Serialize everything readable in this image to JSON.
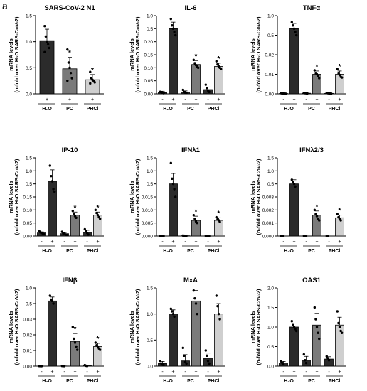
{
  "figure": {
    "panel_letter": "a"
  },
  "colors": {
    "H2O": "#2b2b2b",
    "PC": "#7a7a7a",
    "PHCl": "#cfcfcf",
    "untreated": "#2b2b2b"
  },
  "ylabel_line1": "mRNA levels",
  "ylabel_line2": "(n-fold over H₂O SARS-CoV-2)",
  "chart_data": [
    {
      "type": "bar",
      "title": "SARS-CoV-2 N1",
      "mode": "single",
      "groups": [
        "H₂O",
        "PC",
        "PHCl"
      ],
      "xticks": [
        [
          "+"
        ],
        [
          "+"
        ],
        [
          "+"
        ]
      ],
      "ylim": [
        0,
        1.5
      ],
      "yticks": [
        "0.0",
        "0.5",
        "1.0",
        "1.5"
      ],
      "bars": [
        {
          "group": 0,
          "fill": "H2O",
          "value": 1.02,
          "err": 0.22,
          "star": false,
          "dots": [
            1.3,
            1.1,
            1.0,
            0.95,
            0.88,
            0.8
          ]
        },
        {
          "group": 1,
          "fill": "PC",
          "value": 0.48,
          "err": 0.22,
          "star": true,
          "dots": [
            0.85,
            0.6,
            0.5,
            0.4,
            0.3,
            0.25
          ]
        },
        {
          "group": 2,
          "fill": "PHCl",
          "value": 0.27,
          "err": 0.1,
          "star": true,
          "dots": [
            0.42,
            0.3,
            0.27,
            0.25,
            0.22,
            0.2
          ]
        }
      ]
    },
    {
      "type": "bar",
      "title": "IL-6",
      "mode": "paired",
      "groups": [
        "H₂O",
        "PC",
        "PHCl"
      ],
      "xticks": [
        [
          "-",
          "+"
        ],
        [
          "-",
          "+"
        ],
        [
          "-",
          "+"
        ]
      ],
      "ylim": [
        0,
        1.2
      ],
      "yticks": [
        "0.00",
        "0.05",
        "0.10",
        "0.15",
        "0.20",
        "0.5",
        "1.0"
      ],
      "bars": [
        {
          "group": 0,
          "fill": "untreated",
          "value": 0.02,
          "err": 0.02,
          "star": false,
          "dots": [
            0.03,
            0.025,
            0.015,
            0.01
          ]
        },
        {
          "group": 0,
          "fill": "H2O",
          "value": 1.0,
          "err": 0.1,
          "star": false,
          "dots": [
            1.15,
            1.05,
            1.0,
            0.95,
            0.9
          ]
        },
        {
          "group": 1,
          "fill": "untreated",
          "value": 0.025,
          "err": 0.02,
          "star": false,
          "dots": [
            0.06,
            0.03,
            0.02,
            0.015
          ]
        },
        {
          "group": 1,
          "fill": "PC",
          "value": 0.45,
          "err": 0.06,
          "star": true,
          "dots": [
            0.52,
            0.47,
            0.44,
            0.42,
            0.4
          ]
        },
        {
          "group": 2,
          "fill": "untreated",
          "value": 0.065,
          "err": 0.04,
          "star": false,
          "dots": [
            0.14,
            0.09,
            0.05,
            0.03
          ]
        },
        {
          "group": 2,
          "fill": "PHCl",
          "value": 0.42,
          "err": 0.05,
          "star": true,
          "dots": [
            0.5,
            0.45,
            0.42,
            0.4,
            0.38
          ]
        }
      ]
    },
    {
      "type": "bar",
      "title": "TNFα",
      "mode": "paired",
      "groups": [
        "H₂O",
        "PC",
        "PHCl"
      ],
      "xticks": [
        [
          "-",
          "+"
        ],
        [
          "-",
          "+"
        ],
        [
          "-",
          "+"
        ]
      ],
      "ylim": [
        0,
        1.2
      ],
      "yticks": [
        "0.00",
        "0.01",
        "0.02",
        "0.5",
        "1.0"
      ],
      "bars": [
        {
          "group": 0,
          "fill": "untreated",
          "value": 0.005,
          "err": 0.004,
          "star": false,
          "dots": [
            0.009,
            0.006,
            0.004,
            0.003,
            0.002
          ]
        },
        {
          "group": 0,
          "fill": "H2O",
          "value": 1.0,
          "err": 0.08,
          "star": false,
          "dots": [
            1.1,
            1.05,
            1.0,
            0.95,
            0.9
          ]
        },
        {
          "group": 1,
          "fill": "untreated",
          "value": 0.009,
          "err": 0.004,
          "star": false,
          "dots": [
            0.014,
            0.01,
            0.008,
            0.006
          ]
        },
        {
          "group": 1,
          "fill": "PC",
          "value": 0.3,
          "err": 0.05,
          "star": true,
          "dots": [
            0.36,
            0.32,
            0.3,
            0.27,
            0.24
          ]
        },
        {
          "group": 2,
          "fill": "untreated",
          "value": 0.007,
          "err": 0.005,
          "star": false,
          "dots": [
            0.014,
            0.01,
            0.007,
            0.004,
            0.003
          ]
        },
        {
          "group": 2,
          "fill": "PHCl",
          "value": 0.3,
          "err": 0.05,
          "star": true,
          "dots": [
            0.38,
            0.32,
            0.29,
            0.26,
            0.25
          ]
        }
      ]
    },
    {
      "type": "bar",
      "title": "IP-10",
      "mode": "paired",
      "groups": [
        "H₂O",
        "PC",
        "PHCl"
      ],
      "xticks": [
        [
          "-",
          "+"
        ],
        [
          "-",
          "+"
        ],
        [
          "-",
          "+"
        ]
      ],
      "ylim": [
        0,
        1.5
      ],
      "yticks": [
        "0.00",
        "0.05",
        "0.10",
        "0.15",
        "0.5",
        "1.0",
        "1.5"
      ],
      "bars": [
        {
          "group": 0,
          "fill": "untreated",
          "value": 0.06,
          "err": 0.02,
          "star": false,
          "dots": [
            0.09,
            0.07,
            0.06,
            0.05,
            0.04
          ]
        },
        {
          "group": 0,
          "fill": "H2O",
          "value": 1.05,
          "err": 0.22,
          "star": false,
          "dots": [
            1.35,
            1.15,
            1.05,
            0.9,
            0.85
          ]
        },
        {
          "group": 1,
          "fill": "untreated",
          "value": 0.045,
          "err": 0.02,
          "star": false,
          "dots": [
            0.08,
            0.05,
            0.04,
            0.03,
            0.02
          ]
        },
        {
          "group": 1,
          "fill": "PC",
          "value": 0.4,
          "err": 0.06,
          "star": true,
          "dots": [
            0.48,
            0.42,
            0.38,
            0.35
          ]
        },
        {
          "group": 2,
          "fill": "untreated",
          "value": 0.07,
          "err": 0.04,
          "star": false,
          "dots": [
            0.13,
            0.1,
            0.06,
            0.03
          ]
        },
        {
          "group": 2,
          "fill": "PHCl",
          "value": 0.4,
          "err": 0.06,
          "star": true,
          "dots": [
            0.5,
            0.44,
            0.4,
            0.36,
            0.33
          ]
        }
      ]
    },
    {
      "type": "bar",
      "title": "IFNλ1",
      "mode": "paired",
      "groups": [
        "H₂O",
        "PC",
        "PHCl"
      ],
      "xticks": [
        [
          "-",
          "+"
        ],
        [
          "-",
          "+"
        ],
        [
          "-",
          "+"
        ]
      ],
      "ylim": [
        0,
        1.5
      ],
      "yticks": [
        "0.000",
        "0.005",
        "0.010",
        "0.015",
        "0.5",
        "1.0",
        "1.5"
      ],
      "bars": [
        {
          "group": 0,
          "fill": "untreated",
          "value": 0.0008,
          "err": 0.0005,
          "star": false,
          "dots": [
            0.0015,
            0.001,
            0.0007,
            0.0005
          ]
        },
        {
          "group": 0,
          "fill": "H2O",
          "value": 1.0,
          "err": 0.2,
          "star": false,
          "dots": [
            1.4,
            1.1,
            1.0,
            0.9,
            0.75
          ]
        },
        {
          "group": 1,
          "fill": "untreated",
          "value": 0.005,
          "err": 0.004,
          "star": false,
          "dots": [
            0.009,
            0.005,
            0.003,
            0.001
          ]
        },
        {
          "group": 1,
          "fill": "PC",
          "value": 0.3,
          "err": 0.08,
          "star": true,
          "dots": [
            0.4,
            0.33,
            0.28,
            0.25
          ]
        },
        {
          "group": 2,
          "fill": "untreated",
          "value": 0.0008,
          "err": 0.0006,
          "star": false,
          "dots": [
            0.0018,
            0.001,
            0.0006,
            0.0004
          ]
        },
        {
          "group": 2,
          "fill": "PHCl",
          "value": 0.3,
          "err": 0.05,
          "star": true,
          "dots": [
            0.36,
            0.32,
            0.3,
            0.27
          ]
        }
      ]
    },
    {
      "type": "bar",
      "title": "IFNλ2/3",
      "mode": "paired",
      "groups": [
        "H₂O",
        "PC",
        "PHCl"
      ],
      "xticks": [
        [
          "-",
          "+"
        ],
        [
          "-",
          "+"
        ],
        [
          "-",
          "+"
        ]
      ],
      "ylim": [
        0,
        1.5
      ],
      "yticks": [
        "0.000",
        "0.001",
        "0.002",
        "0.003",
        "0.5",
        "1.0",
        "1.5"
      ],
      "bars": [
        {
          "group": 0,
          "fill": "untreated",
          "value": 8e-05,
          "err": 5e-05,
          "star": false,
          "dots": [
            0.00015,
            0.0001,
            6e-05
          ]
        },
        {
          "group": 0,
          "fill": "H2O",
          "value": 1.0,
          "err": 0.08,
          "star": false,
          "dots": [
            1.08,
            1.03,
            1.0,
            0.95
          ]
        },
        {
          "group": 1,
          "fill": "untreated",
          "value": 0.0004,
          "err": 0.0008,
          "star": false,
          "dots": [
            0.0017,
            0.0003,
            0.0001
          ]
        },
        {
          "group": 1,
          "fill": "PC",
          "value": 0.4,
          "err": 0.08,
          "star": true,
          "dots": [
            0.5,
            0.42,
            0.38,
            0.33,
            0.3
          ]
        },
        {
          "group": 2,
          "fill": "untreated",
          "value": 8e-05,
          "err": 5e-05,
          "star": false,
          "dots": [
            0.00012,
            8e-05
          ]
        },
        {
          "group": 2,
          "fill": "PHCl",
          "value": 0.35,
          "err": 0.05,
          "star": true,
          "dots": [
            0.42,
            0.36,
            0.33,
            0.3
          ]
        }
      ]
    },
    {
      "type": "bar",
      "title": "IFNβ",
      "mode": "paired",
      "groups": [
        "H₂O",
        "PC",
        "PHCl"
      ],
      "xticks": [
        [
          "-",
          "+"
        ],
        [
          "-",
          "+"
        ],
        [
          "-",
          "+"
        ]
      ],
      "ylim": [
        0,
        1.2
      ],
      "yticks": [
        "0.00",
        "0.01",
        "0.02",
        "0.03",
        "0.5",
        "1.0"
      ],
      "bars": [
        {
          "group": 0,
          "fill": "untreated",
          "value": 0.001,
          "err": 0.001,
          "star": false,
          "dots": [
            0.002,
            0.001,
            0.0005
          ]
        },
        {
          "group": 0,
          "fill": "H2O",
          "value": 1.0,
          "err": 0.06,
          "star": false,
          "dots": [
            1.08,
            1.02,
            1.0,
            0.96
          ]
        },
        {
          "group": 1,
          "fill": "untreated",
          "value": 0.0015,
          "err": 0.001,
          "star": false,
          "dots": [
            0.003,
            0.0015,
            0.001
          ]
        },
        {
          "group": 1,
          "fill": "PC",
          "value": 0.38,
          "err": 0.12,
          "star": true,
          "dots": [
            0.6,
            0.42,
            0.36,
            0.3,
            0.25
          ]
        },
        {
          "group": 2,
          "fill": "untreated",
          "value": 0.006,
          "err": 0.009,
          "star": false,
          "dots": [
            0.015,
            0.006,
            0.002
          ]
        },
        {
          "group": 2,
          "fill": "PHCl",
          "value": 0.3,
          "err": 0.05,
          "star": true,
          "dots": [
            0.36,
            0.32,
            0.3,
            0.27,
            0.25
          ]
        }
      ]
    },
    {
      "type": "bar",
      "title": "MxA",
      "mode": "paired",
      "groups": [
        "H₂O",
        "PC",
        "PHCl"
      ],
      "xticks": [
        [
          "-",
          "+"
        ],
        [
          "-",
          "+"
        ],
        [
          "-",
          "+"
        ]
      ],
      "ylim": [
        0,
        1.5
      ],
      "yticks": [
        "0.0",
        "0.5",
        "1.0",
        "1.5"
      ],
      "bars": [
        {
          "group": 0,
          "fill": "untreated",
          "value": 0.05,
          "err": 0.04,
          "star": false,
          "dots": [
            0.1,
            0.05,
            0.03,
            0.02
          ]
        },
        {
          "group": 0,
          "fill": "H2O",
          "value": 1.0,
          "err": 0.08,
          "star": false,
          "dots": [
            1.1,
            1.05,
            1.0,
            0.95
          ]
        },
        {
          "group": 1,
          "fill": "untreated",
          "value": 0.1,
          "err": 0.12,
          "star": false,
          "dots": [
            0.35,
            0.2,
            0.08,
            0.05
          ]
        },
        {
          "group": 1,
          "fill": "PC",
          "value": 1.25,
          "err": 0.2,
          "star": false,
          "dots": [
            1.45,
            1.3,
            1.2,
            1.0
          ]
        },
        {
          "group": 2,
          "fill": "untreated",
          "value": 0.15,
          "err": 0.1,
          "star": false,
          "dots": [
            0.3,
            0.2,
            0.1,
            0.05
          ]
        },
        {
          "group": 2,
          "fill": "PHCl",
          "value": 1.0,
          "err": 0.2,
          "star": false,
          "dots": [
            1.35,
            1.15,
            1.0,
            0.9
          ]
        }
      ]
    },
    {
      "type": "bar",
      "title": "OAS1",
      "mode": "paired",
      "groups": [
        "H₂O",
        "PC",
        "PHCl"
      ],
      "xticks": [
        [
          "-",
          "+"
        ],
        [
          "-",
          "+"
        ],
        [
          "-",
          "+"
        ]
      ],
      "ylim": [
        0,
        2.0
      ],
      "yticks": [
        "0.0",
        "0.5",
        "1.0",
        "1.5",
        "2.0"
      ],
      "bars": [
        {
          "group": 0,
          "fill": "untreated",
          "value": 0.08,
          "err": 0.04,
          "star": false,
          "dots": [
            0.12,
            0.08,
            0.05
          ]
        },
        {
          "group": 0,
          "fill": "H2O",
          "value": 1.0,
          "err": 0.1,
          "star": false,
          "dots": [
            1.15,
            1.05,
            1.0,
            0.95,
            0.9
          ]
        },
        {
          "group": 1,
          "fill": "untreated",
          "value": 0.15,
          "err": 0.1,
          "star": false,
          "dots": [
            0.3,
            0.15,
            0.08
          ]
        },
        {
          "group": 1,
          "fill": "PC",
          "value": 1.05,
          "err": 0.3,
          "star": false,
          "dots": [
            1.5,
            1.2,
            1.0,
            0.85,
            0.7
          ]
        },
        {
          "group": 2,
          "fill": "untreated",
          "value": 0.18,
          "err": 0.06,
          "star": false,
          "dots": [
            0.25,
            0.2,
            0.15
          ]
        },
        {
          "group": 2,
          "fill": "PHCl",
          "value": 1.05,
          "err": 0.2,
          "star": false,
          "dots": [
            1.4,
            1.1,
            1.0,
            0.9,
            0.85
          ]
        }
      ]
    }
  ]
}
